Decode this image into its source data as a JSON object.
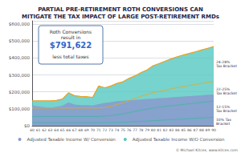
{
  "chart_data": {
    "type": "area",
    "title": "PARTIAL PRE-RETIREMENT ROTH CONVERSIONS CAN\nMITIGATE THE TAX IMPACT OF LARGE POST-RETIREMENT RMDs",
    "categories": [
      60,
      61,
      62,
      63,
      64,
      65,
      66,
      67,
      68,
      69,
      70,
      71,
      72,
      73,
      74,
      75,
      76,
      77,
      78,
      79,
      80,
      81,
      82,
      83,
      84,
      85,
      86,
      87,
      88,
      89,
      90
    ],
    "series": [
      {
        "name": "Adjusted Taxable Income W/ Conversion",
        "type": "area",
        "color": "#8899cc",
        "values": [
          120000,
          115000,
          110000,
          108000,
          112000,
          118000,
          138000,
          125000,
          122000,
          122000,
          120000,
          128000,
          135000,
          140000,
          145000,
          148000,
          150000,
          153000,
          155000,
          158000,
          160000,
          163000,
          165000,
          168000,
          170000,
          173000,
          175000,
          178000,
          180000,
          183000,
          185000
        ]
      },
      {
        "name": "Adjusted Taxable Income W/O Conversion",
        "type": "area",
        "color": "#55c8c0",
        "values": [
          148000,
          148000,
          148000,
          148000,
          150000,
          158000,
          195000,
          178000,
          173000,
          172000,
          168000,
          235000,
          225000,
          235000,
          250000,
          260000,
          280000,
          295000,
          315000,
          330000,
          355000,
          368000,
          382000,
          396000,
          408000,
          418000,
          428000,
          438000,
          448000,
          458000,
          468000
        ]
      },
      {
        "type": "line",
        "color": "#40b8a0",
        "values": [
          18000,
          18000,
          18000,
          18000,
          18000,
          18000,
          18000,
          18000,
          18000,
          18000,
          18000,
          18000,
          18500,
          19000,
          19500,
          20000,
          22000,
          24000,
          26000,
          28000,
          30000,
          32000,
          34000,
          36000,
          38000,
          40000,
          42000,
          44000,
          46000,
          48000,
          50000
        ]
      },
      {
        "type": "line",
        "color": "#40b8a0",
        "values": [
          55000,
          55000,
          55000,
          55000,
          55000,
          55000,
          55000,
          55000,
          55000,
          55000,
          55000,
          55000,
          57000,
          60000,
          65000,
          70000,
          78000,
          85000,
          92000,
          98000,
          105000,
          110000,
          115000,
          118000,
          122000,
          126000,
          130000,
          134000,
          138000,
          142000,
          146000
        ]
      },
      {
        "type": "line",
        "color": "#e8a820",
        "values": [
          105000,
          105000,
          105000,
          105000,
          105000,
          105000,
          105000,
          105000,
          105000,
          105000,
          105000,
          105000,
          108000,
          115000,
          125000,
          135000,
          150000,
          162000,
          174000,
          185000,
          196000,
          203000,
          210000,
          218000,
          226000,
          232000,
          238000,
          244000,
          250000,
          256000,
          262000
        ]
      },
      {
        "type": "line",
        "color": "#e8a020",
        "values": [
          148000,
          148000,
          148000,
          148000,
          150000,
          158000,
          195000,
          178000,
          173000,
          172000,
          168000,
          235000,
          225000,
          235000,
          250000,
          260000,
          280000,
          295000,
          315000,
          330000,
          355000,
          368000,
          382000,
          396000,
          408000,
          418000,
          428000,
          438000,
          448000,
          458000,
          468000
        ]
      }
    ],
    "ylim": [
      0,
      620000
    ],
    "yticks": [
      {
        "value": 0,
        "label": "$0"
      },
      {
        "value": 100000,
        "label": "$100,000"
      },
      {
        "value": 200000,
        "label": "$200,000"
      },
      {
        "value": 300000,
        "label": "$300,000"
      },
      {
        "value": 400000,
        "label": "$400,000"
      },
      {
        "value": 500000,
        "label": "$500,000"
      },
      {
        "value": 600000,
        "label": "$600,000"
      }
    ],
    "grid": true,
    "legend": "bottom",
    "annotations": [
      "24-28%\nTax Bracket",
      "22-25%\nTax Bracket",
      "12-15%\nTax Bracket",
      "10% Tax\nBracket",
      "Roth Conversions\nresult in",
      "$791,622",
      "less total taxes",
      "© Michael Kitces, www.kitces.com"
    ]
  }
}
